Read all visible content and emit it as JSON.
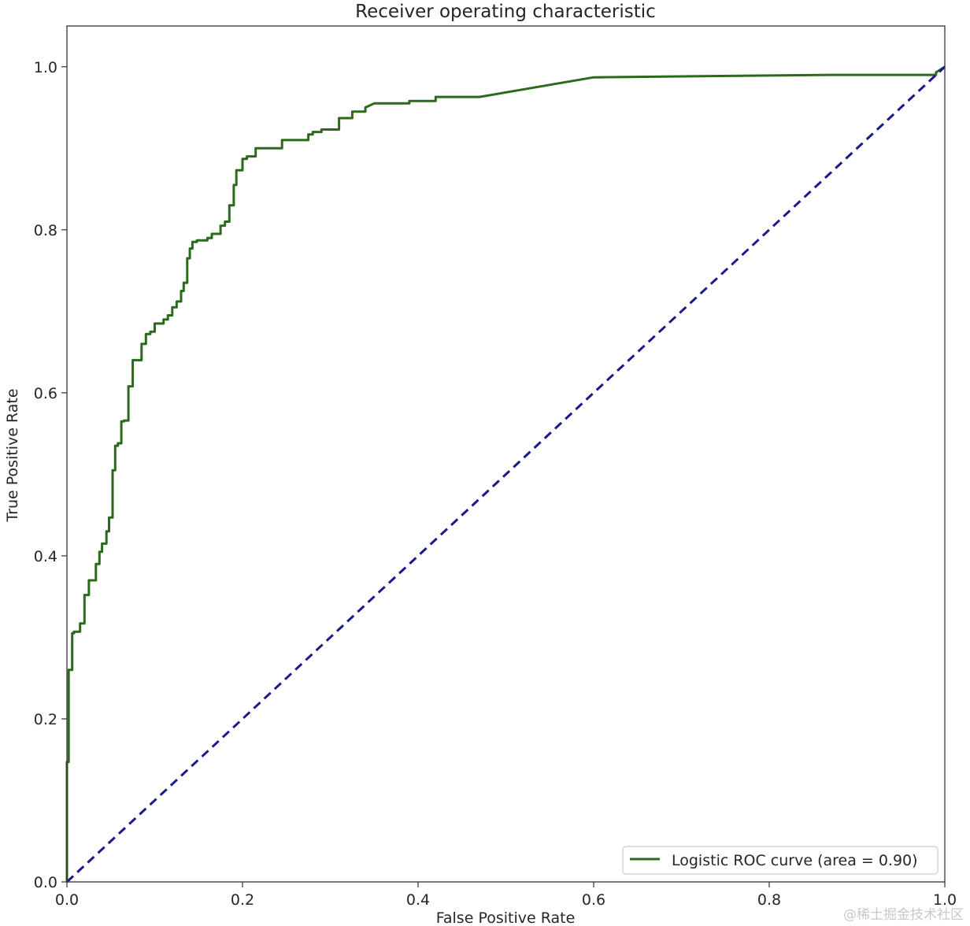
{
  "chart_data": {
    "type": "line",
    "title": "Receiver operating characteristic",
    "xlabel": "False Positive Rate",
    "ylabel": "True Positive Rate",
    "xlim": [
      0.0,
      1.0
    ],
    "ylim": [
      0.0,
      1.05
    ],
    "xticks": [
      "0.0",
      "0.2",
      "0.4",
      "0.6",
      "0.8",
      "1.0"
    ],
    "yticks": [
      "0.0",
      "0.2",
      "0.4",
      "0.6",
      "0.8",
      "1.0"
    ],
    "grid": false,
    "legend_position": "lower-right",
    "colors": {
      "roc": "#2b6a1b",
      "diagonal": "#1a1a8c",
      "axes": "#333333"
    },
    "series": [
      {
        "name": "Logistic ROC curve (area = 0.90)",
        "style": "solid",
        "x": [
          0.0,
          0.0,
          0.002,
          0.002,
          0.006,
          0.006,
          0.008,
          0.008,
          0.015,
          0.015,
          0.02,
          0.02,
          0.025,
          0.025,
          0.033,
          0.033,
          0.037,
          0.037,
          0.04,
          0.04,
          0.045,
          0.045,
          0.048,
          0.048,
          0.052,
          0.052,
          0.055,
          0.055,
          0.058,
          0.058,
          0.062,
          0.062,
          0.065,
          0.065,
          0.07,
          0.07,
          0.075,
          0.075,
          0.085,
          0.085,
          0.09,
          0.09,
          0.095,
          0.095,
          0.1,
          0.1,
          0.11,
          0.11,
          0.115,
          0.115,
          0.12,
          0.12,
          0.125,
          0.125,
          0.13,
          0.13,
          0.133,
          0.133,
          0.137,
          0.137,
          0.14,
          0.14,
          0.143,
          0.143,
          0.148,
          0.148,
          0.16,
          0.16,
          0.165,
          0.165,
          0.175,
          0.175,
          0.18,
          0.18,
          0.185,
          0.185,
          0.19,
          0.19,
          0.193,
          0.193,
          0.2,
          0.2,
          0.205,
          0.205,
          0.215,
          0.215,
          0.245,
          0.245,
          0.275,
          0.275,
          0.28,
          0.28,
          0.29,
          0.29,
          0.31,
          0.31,
          0.325,
          0.325,
          0.34,
          0.34,
          0.35,
          0.39,
          0.39,
          0.42,
          0.42,
          0.47,
          0.6,
          0.87,
          0.99,
          0.99,
          1.0
        ],
        "y": [
          0.0,
          0.147,
          0.147,
          0.26,
          0.26,
          0.305,
          0.305,
          0.307,
          0.307,
          0.317,
          0.317,
          0.352,
          0.352,
          0.37,
          0.37,
          0.39,
          0.39,
          0.405,
          0.405,
          0.415,
          0.415,
          0.43,
          0.43,
          0.447,
          0.447,
          0.505,
          0.505,
          0.535,
          0.535,
          0.538,
          0.538,
          0.565,
          0.565,
          0.566,
          0.566,
          0.608,
          0.608,
          0.64,
          0.64,
          0.66,
          0.66,
          0.672,
          0.672,
          0.675,
          0.675,
          0.685,
          0.685,
          0.69,
          0.69,
          0.695,
          0.695,
          0.705,
          0.705,
          0.712,
          0.712,
          0.725,
          0.725,
          0.735,
          0.735,
          0.765,
          0.765,
          0.777,
          0.777,
          0.785,
          0.785,
          0.787,
          0.787,
          0.79,
          0.79,
          0.795,
          0.795,
          0.805,
          0.805,
          0.81,
          0.81,
          0.83,
          0.83,
          0.855,
          0.855,
          0.873,
          0.873,
          0.887,
          0.887,
          0.89,
          0.89,
          0.9,
          0.9,
          0.91,
          0.91,
          0.917,
          0.917,
          0.92,
          0.92,
          0.923,
          0.923,
          0.937,
          0.937,
          0.945,
          0.945,
          0.95,
          0.955,
          0.955,
          0.958,
          0.958,
          0.963,
          0.963,
          0.987,
          0.99,
          0.99,
          0.993,
          1.0
        ]
      },
      {
        "name": "",
        "style": "dashed",
        "x": [
          0.0,
          1.0
        ],
        "y": [
          0.0,
          1.0
        ]
      }
    ],
    "legend_label": "Logistic ROC curve (area = 0.90)"
  },
  "watermark": "@稀土掘金技术社区"
}
